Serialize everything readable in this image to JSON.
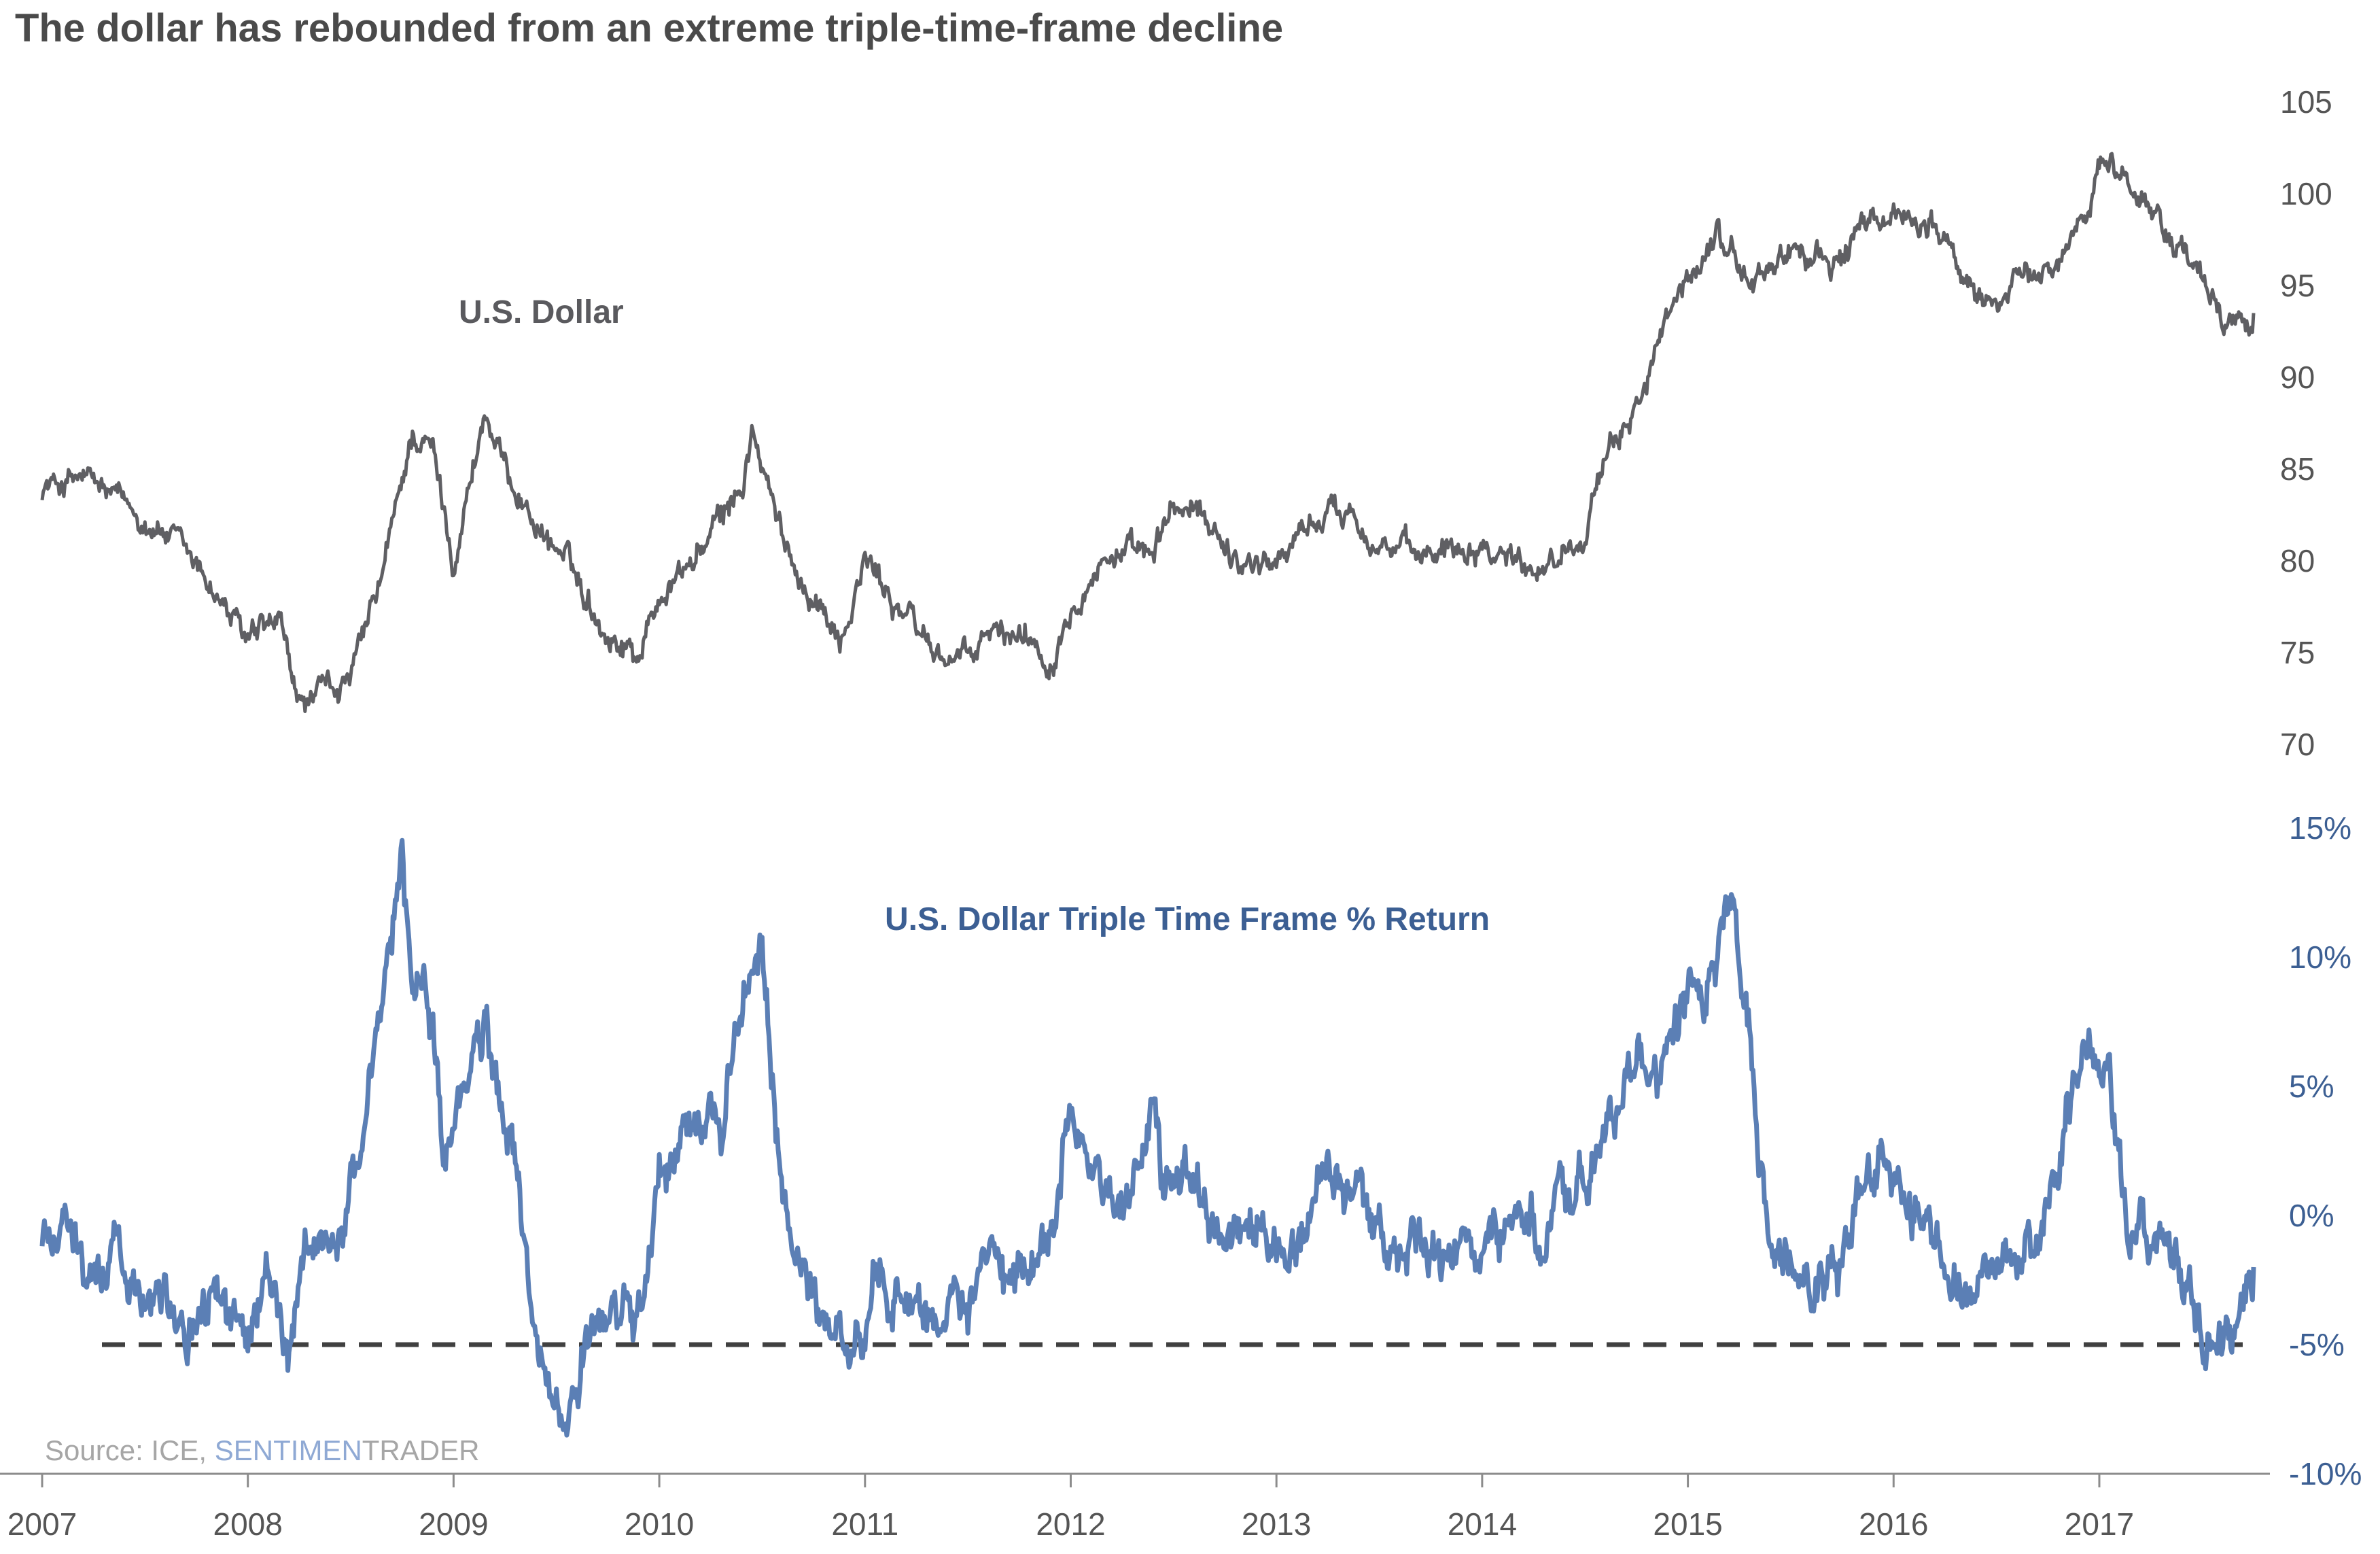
{
  "title": "The dollar has rebounded from an extreme triple-time-frame decline",
  "source": {
    "prefix": "Source: ICE, ",
    "brand_a": "SENTIMEN",
    "brand_b": "TRADER"
  },
  "colors": {
    "dollar": "#5f5f63",
    "ttf": "#5b7fb5",
    "threshold": "#404040",
    "source_gray": "#a6a6a6",
    "brand_blue": "#8fa9d4",
    "axis": "#8c8c8c"
  },
  "chart_data": [
    {
      "type": "line",
      "name": "U.S. Dollar",
      "label": "U.S. Dollar",
      "ylim": [
        70,
        105
      ],
      "y_ticks": [
        "105",
        "100",
        "95",
        "90",
        "85",
        "80",
        "75",
        "70"
      ],
      "x": [
        2007.0,
        2007.2,
        2007.4,
        2007.6,
        2007.8,
        2008.0,
        2008.15,
        2008.25,
        2008.4,
        2008.5,
        2008.65,
        2008.8,
        2008.9,
        2009.0,
        2009.15,
        2009.25,
        2009.4,
        2009.55,
        2009.75,
        2009.9,
        2010.0,
        2010.2,
        2010.4,
        2010.45,
        2010.6,
        2010.75,
        2010.9,
        2011.0,
        2011.2,
        2011.35,
        2011.5,
        2011.6,
        2011.8,
        2011.9,
        2012.0,
        2012.2,
        2012.4,
        2012.5,
        2012.7,
        2012.8,
        2013.0,
        2013.15,
        2013.35,
        2013.5,
        2013.7,
        2013.8,
        2014.0,
        2014.2,
        2014.35,
        2014.5,
        2014.6,
        2014.8,
        2014.95,
        2015.0,
        2015.15,
        2015.3,
        2015.5,
        2015.7,
        2015.8,
        2016.0,
        2016.2,
        2016.4,
        2016.6,
        2016.8,
        2016.95,
        2017.0,
        2017.2,
        2017.4,
        2017.6,
        2017.75
      ],
      "values": [
        84,
        84.5,
        83,
        81.5,
        79,
        75.5,
        76.5,
        72,
        73,
        73.5,
        79,
        87,
        86,
        80,
        88,
        85,
        82,
        80,
        76,
        75,
        78,
        80.5,
        84,
        87,
        81,
        78,
        76,
        80,
        77,
        75,
        74.5,
        76,
        76,
        74.5,
        78,
        80.5,
        80,
        83,
        82,
        80,
        80,
        82,
        83,
        81,
        80,
        81,
        81,
        80,
        80,
        82,
        85,
        90,
        94,
        95,
        98,
        95,
        97,
        96,
        97.5,
        99,
        98.5,
        94,
        95,
        96,
        100,
        102,
        100,
        97,
        93,
        93.5
      ]
    },
    {
      "type": "line",
      "name": "U.S. Dollar Triple Time Frame % Return",
      "label": "U.S. Dollar Triple Time Frame % Return",
      "ylim": [
        -10,
        15
      ],
      "y_ticks": [
        "15%",
        "10%",
        "5%",
        "0%",
        "-5%",
        "-10%"
      ],
      "x": [
        2007.0,
        2007.1,
        2007.25,
        2007.35,
        2007.45,
        2007.6,
        2007.75,
        2007.85,
        2008.0,
        2008.1,
        2008.2,
        2008.3,
        2008.45,
        2008.55,
        2008.65,
        2008.75,
        2008.8,
        2008.9,
        2008.95,
        2009.05,
        2009.15,
        2009.3,
        2009.4,
        2009.5,
        2009.7,
        2009.8,
        2009.9,
        2010.0,
        2010.15,
        2010.3,
        2010.4,
        2010.5,
        2010.6,
        2010.75,
        2010.85,
        2010.95,
        2011.05,
        2011.2,
        2011.35,
        2011.5,
        2011.6,
        2011.7,
        2011.8,
        2011.9,
        2012.0,
        2012.1,
        2012.25,
        2012.4,
        2012.45,
        2012.55,
        2012.7,
        2012.85,
        2012.95,
        2013.05,
        2013.15,
        2013.25,
        2013.35,
        2013.45,
        2013.55,
        2013.7,
        2013.8,
        2014.0,
        2014.15,
        2014.3,
        2014.45,
        2014.6,
        2014.75,
        2014.85,
        2014.95,
        2015.05,
        2015.15,
        2015.2,
        2015.3,
        2015.4,
        2015.5,
        2015.65,
        2015.75,
        2015.85,
        2015.95,
        2016.1,
        2016.25,
        2016.4,
        2016.55,
        2016.7,
        2016.85,
        2016.95,
        2017.05,
        2017.15,
        2017.25,
        2017.4,
        2017.55,
        2017.65,
        2017.75
      ],
      "values": [
        -1,
        0,
        -3,
        -1,
        -3,
        -2.5,
        -5,
        -3,
        -5,
        -2,
        -6,
        -1,
        -1,
        3,
        7,
        14,
        9,
        8,
        2,
        5,
        7,
        2,
        -5,
        -8,
        -5,
        -4,
        -4,
        1,
        4,
        4,
        8,
        10,
        0,
        -3,
        -5,
        -5,
        -2,
        -3,
        -4,
        -4,
        -2,
        -3,
        -2,
        -1,
        5,
        2,
        0,
        4,
        1,
        2,
        0,
        -1,
        -1,
        -2,
        -1,
        3,
        1,
        0,
        -2,
        -1,
        -2,
        -1,
        0,
        -1,
        1,
        3,
        6,
        5,
        7,
        9,
        10,
        11,
        7,
        -2,
        -1,
        -3,
        -2,
        2,
        3,
        0,
        -2,
        -3,
        -1,
        -2,
        4,
        6,
        5,
        -1,
        -1,
        -2,
        -5,
        -5,
        -2
      ]
    },
    {
      "type": "threshold",
      "value": -5
    }
  ],
  "x_axis": {
    "labels": [
      "2007",
      "2008",
      "2009",
      "2010",
      "2011",
      "2012",
      "2013",
      "2014",
      "2015",
      "2016",
      "2017"
    ]
  }
}
